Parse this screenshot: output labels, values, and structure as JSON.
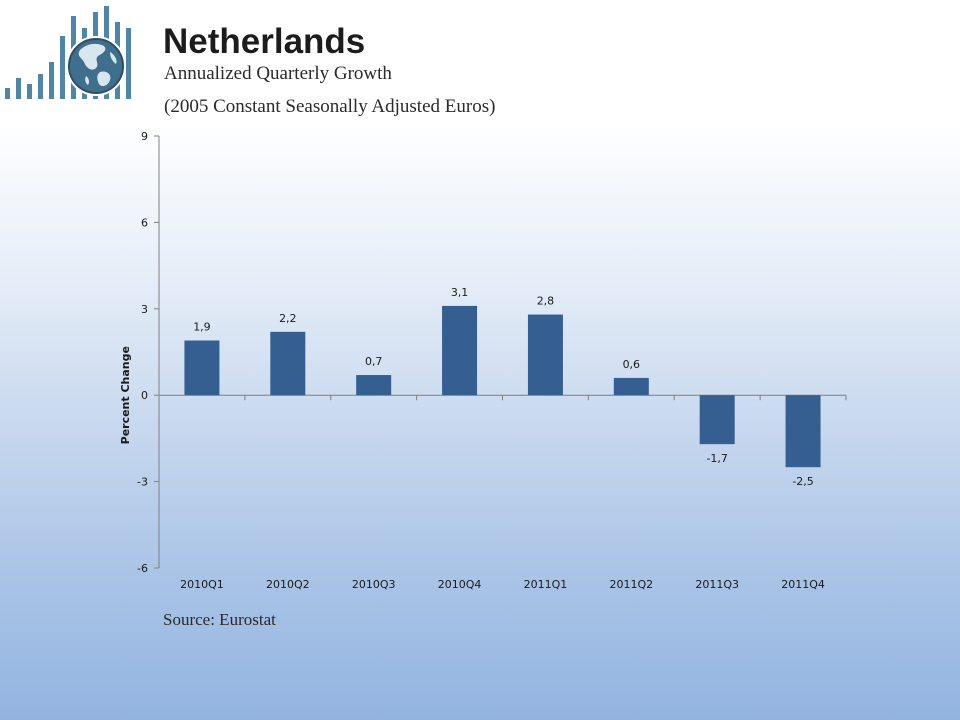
{
  "header": {
    "title": "Netherlands",
    "subtitle_line1": "Annualized Quarterly Growth",
    "subtitle_line2": "(2005 Constant Seasonally Adjusted Euros)"
  },
  "footer": {
    "source": "Source: Eurostat"
  },
  "logo": {
    "icon": "globe-bar-chart-icon",
    "bar_color": "#4f86a7",
    "globe_color": "#3f6f8c"
  },
  "colors": {
    "bar": "#365f91",
    "axis": "#808080"
  },
  "chart_data": {
    "type": "bar",
    "title": "",
    "xlabel": "",
    "ylabel": "Percent Change",
    "categories": [
      "2010Q1",
      "2010Q2",
      "2010Q3",
      "2010Q4",
      "2011Q1",
      "2011Q2",
      "2011Q3",
      "2011Q4"
    ],
    "values": [
      1.9,
      2.2,
      0.7,
      3.1,
      2.8,
      0.6,
      -1.7,
      -2.5
    ],
    "data_labels": [
      "1,9",
      "2,2",
      "0,7",
      "3,1",
      "2,8",
      "0,6",
      "-1,7",
      "-2,5"
    ],
    "ylim": [
      -6,
      9
    ],
    "yticks": [
      9,
      6,
      3,
      0,
      -3,
      -6
    ],
    "ytick_labels": [
      "9",
      "6",
      "3",
      "0",
      "-3",
      "-6"
    ],
    "grid": false,
    "legend": "none"
  }
}
